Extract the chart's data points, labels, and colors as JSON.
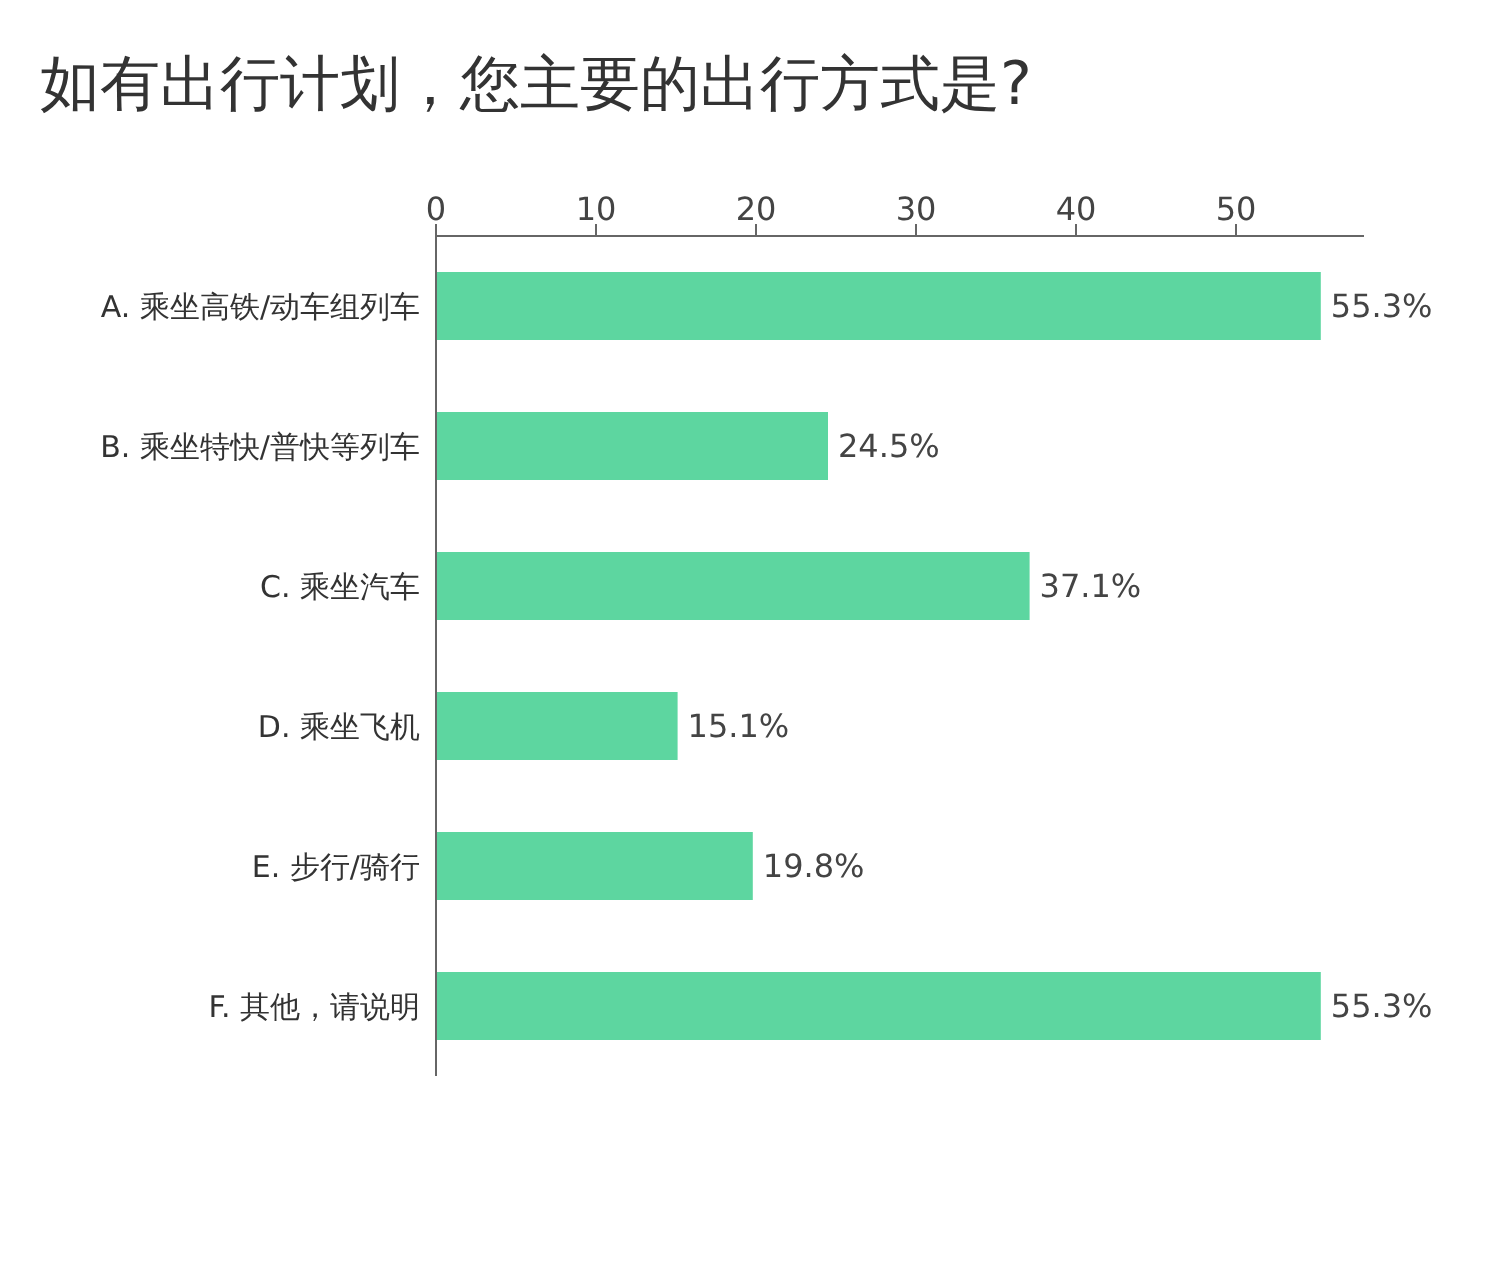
{
  "chart_data": {
    "type": "bar",
    "orientation": "horizontal",
    "title": "如有出行计划，您主要的出行方式是?",
    "categories": [
      "A. 乘坐高铁/动车组列车",
      "B. 乘坐特快/普快等列车",
      "C. 乘坐汽车",
      "D. 乘坐飞机",
      "E. 步行/骑行",
      "F. 其他，请说明"
    ],
    "values": [
      55.3,
      24.5,
      37.1,
      15.1,
      19.8,
      55.3
    ],
    "value_labels": [
      "55.3%",
      "24.5%",
      "37.1%",
      "15.1%",
      "19.8%",
      "55.3%"
    ],
    "color": "#5dd6a0",
    "xlim": [
      0,
      58
    ],
    "xticks": [
      0,
      10,
      20,
      30,
      40,
      50
    ]
  }
}
